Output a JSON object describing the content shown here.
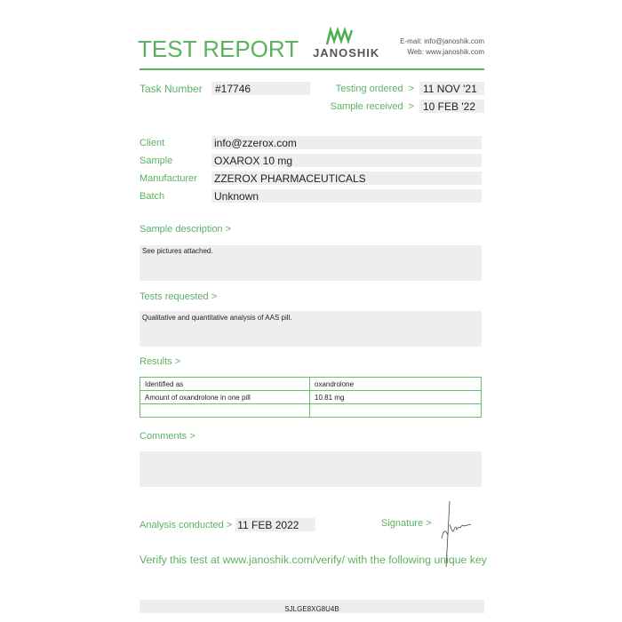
{
  "header": {
    "title": "TEST REPORT",
    "logo_text": "JANOSHIK",
    "email": "E-mail: info@janoshik.com",
    "web": "Web: www.janoshik.com"
  },
  "task": {
    "label": "Task Number",
    "value": "#17746"
  },
  "dates": {
    "ordered_label": "Testing ordered",
    "ordered": "11 NOV '21",
    "received_label": "Sample received",
    "received": "10 FEB '22",
    "arrow": ">"
  },
  "info": [
    {
      "label": "Client",
      "value": "info@zzerox.com"
    },
    {
      "label": "Sample",
      "value": "OXAROX 10 mg"
    },
    {
      "label": "Manufacturer",
      "value": "ZZEROX PHARMACEUTICALS"
    },
    {
      "label": "Batch",
      "value": "Unknown"
    }
  ],
  "sample_description": {
    "label": "Sample description >",
    "text": "See pictures attached."
  },
  "tests_requested": {
    "label": "Tests requested >",
    "text": "Qualitative and quantitative analysis of AAS pill."
  },
  "results": {
    "label": "Results >",
    "rows": [
      [
        "Identified as",
        "oxandrolone"
      ],
      [
        "Amount of oxandrolone in one pill",
        "10.81 mg"
      ],
      [
        "",
        ""
      ]
    ]
  },
  "comments": {
    "label": "Comments >",
    "text": ""
  },
  "analysis": {
    "label": "Analysis conducted >",
    "value": "11 FEB 2022"
  },
  "signature": {
    "label": "Signature >"
  },
  "verify": {
    "text": "Verify this test at www.janoshik.com/verify/ with the following unique key",
    "key": "SJLGE8XG8U4B"
  },
  "colors": {
    "accent": "#5cb160",
    "field": "#eeeeee"
  }
}
